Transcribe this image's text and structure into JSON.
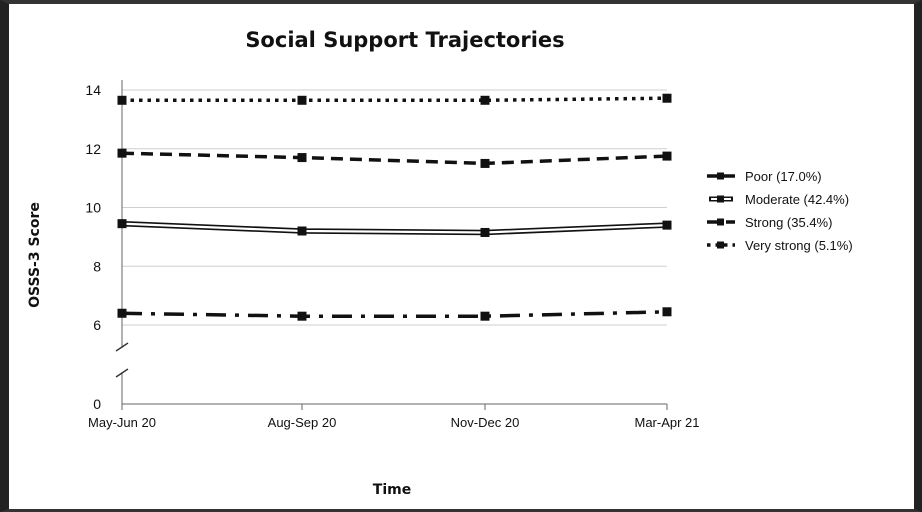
{
  "chart_data": {
    "type": "line",
    "title": "Social Support Trajectories",
    "xlabel": "Time",
    "ylabel": "OSSS-3  Score",
    "categories": [
      "May-Jun 20",
      "Aug-Sep 20",
      "Nov-Dec 20",
      "Mar-Apr 21"
    ],
    "y_ticks": [
      0,
      6,
      8,
      10,
      12,
      14
    ],
    "ylim": [
      0,
      14
    ],
    "axis_break": [
      0,
      6
    ],
    "grid": true,
    "legend_position": "right",
    "series": [
      {
        "name": "Poor (17.0%)",
        "values": [
          6.4,
          6.3,
          6.3,
          6.45
        ],
        "style": "dash-dot",
        "color": "#111111"
      },
      {
        "name": "Moderate (42.4%)",
        "values": [
          9.45,
          9.2,
          9.15,
          9.4
        ],
        "style": "double",
        "color": "#111111"
      },
      {
        "name": "Strong (35.4%)",
        "values": [
          11.85,
          11.7,
          11.5,
          11.75
        ],
        "style": "dashed",
        "color": "#111111"
      },
      {
        "name": "Very strong (5.1%)",
        "values": [
          13.65,
          13.65,
          13.65,
          13.72
        ],
        "style": "dotted",
        "color": "#111111"
      }
    ]
  }
}
